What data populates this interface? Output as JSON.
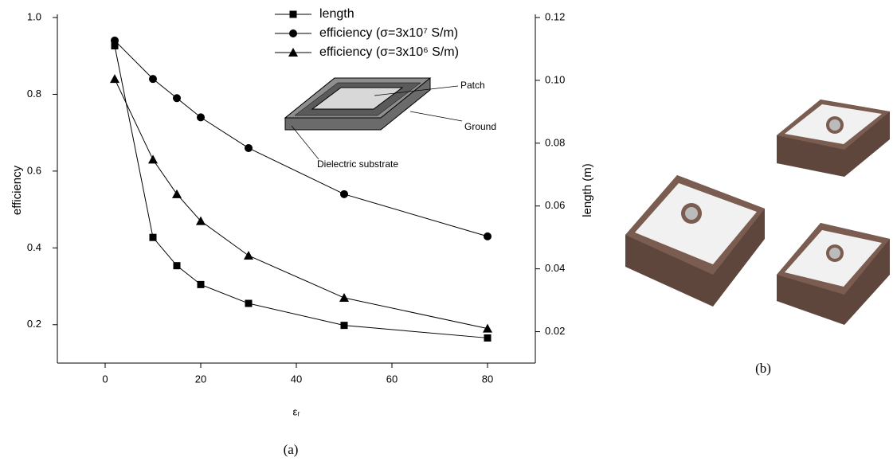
{
  "chart_data": {
    "type": "line",
    "x": [
      2,
      10,
      15,
      20,
      30,
      50,
      80
    ],
    "series": [
      {
        "name": "length",
        "color": "#000000",
        "marker": "square",
        "axis": "y2",
        "values": [
          0.111,
          0.05,
          0.041,
          0.035,
          0.029,
          0.022,
          0.018
        ]
      },
      {
        "name": "efficiency (σ=3x10⁷ S/m)",
        "color": "#000000",
        "marker": "circle",
        "values": [
          0.94,
          0.84,
          0.79,
          0.74,
          0.66,
          0.54,
          0.43
        ]
      },
      {
        "name": "efficiency (σ=3x10⁶ S/m)",
        "color": "#000000",
        "marker": "triangle",
        "values": [
          0.84,
          0.63,
          0.54,
          0.47,
          0.38,
          0.27,
          0.19
        ]
      }
    ],
    "xlabel": "εᵣ",
    "ylabel": "efficiency",
    "y2label": "length (m)",
    "xlim": [
      -10,
      90
    ],
    "xticks": [
      0,
      20,
      40,
      60,
      80
    ],
    "ylim": [
      0.1,
      1.0
    ],
    "yticks": [
      0.2,
      0.4,
      0.6,
      {
        "value": 0.8,
        "label": "0.8"
      },
      {
        "value": 1,
        "label": "1.0"
      }
    ],
    "y2lim": [
      0.01,
      0.12
    ],
    "y2ticks": [
      0.02,
      0.04,
      0.06,
      0.08,
      {
        "value": 0.1,
        "label": "0.10"
      },
      0.12
    ],
    "legend": "top",
    "annotations": [
      "Patch",
      "Ground",
      "Dielectric substrate"
    ],
    "captions": [
      "(a)",
      "(b)"
    ]
  }
}
